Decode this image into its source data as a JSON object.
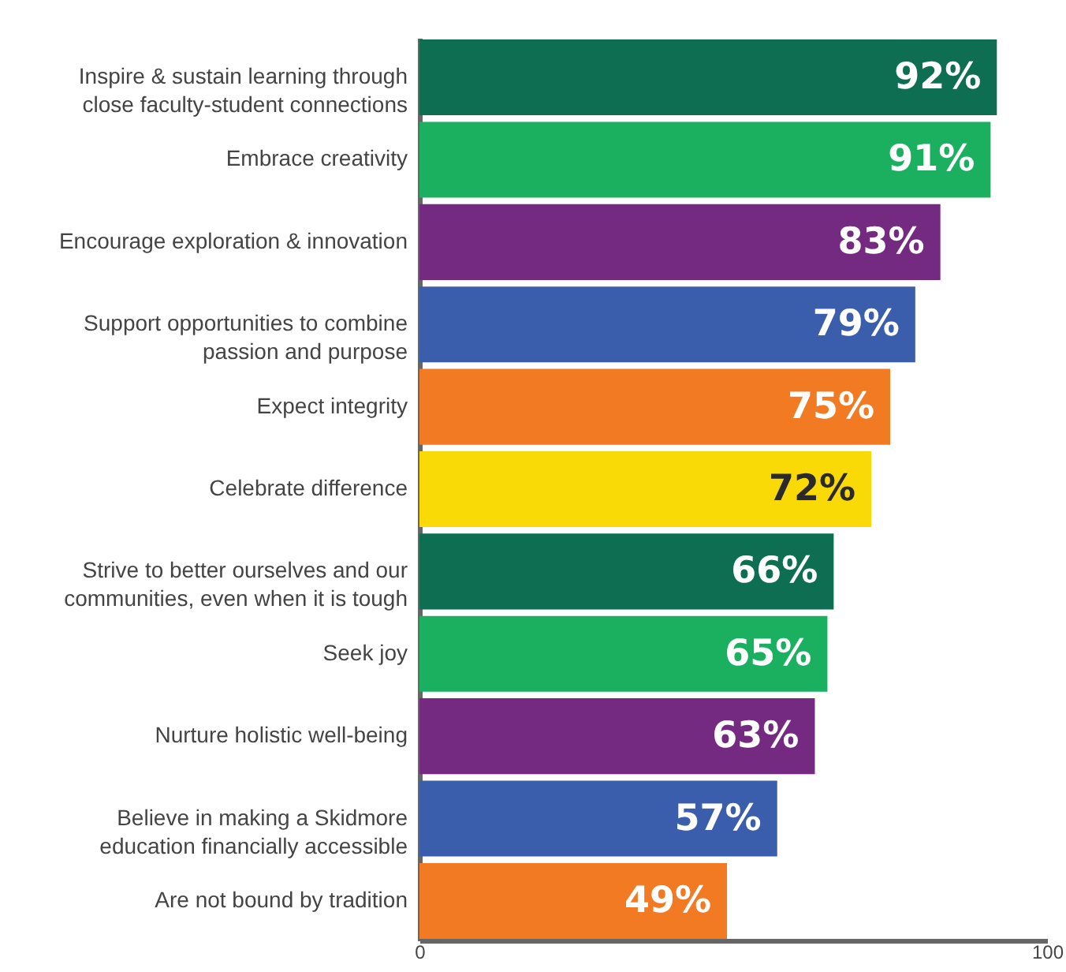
{
  "chart_data": {
    "type": "bar",
    "orientation": "horizontal",
    "categories": [
      "Inspire & sustain learning through\nclose faculty-student connections",
      "Embrace creativity",
      "Encourage exploration & innovation",
      "Support opportunities to combine\npassion and purpose",
      "Expect integrity",
      "Celebrate difference",
      "Strive to better ourselves and our\ncommunities, even when it is tough",
      "Seek joy",
      "Nurture holistic well-being",
      "Believe in making a Skidmore\neducation financially accessible",
      "Are not bound by tradition"
    ],
    "values": [
      92,
      91,
      83,
      79,
      75,
      72,
      66,
      65,
      63,
      57,
      49
    ],
    "colors": [
      "#0e6e52",
      "#1bb060",
      "#742a81",
      "#3a5eab",
      "#f27a22",
      "#f9d906",
      "#0e6e52",
      "#1bb060",
      "#742a81",
      "#3a5eab",
      "#f27a22"
    ],
    "value_labels": [
      "92%",
      "91%",
      "83%",
      "79%",
      "75%",
      "72%",
      "66%",
      "65%",
      "63%",
      "57%",
      "49%"
    ],
    "xlim": [
      0,
      100
    ],
    "xticks": [
      0,
      100
    ],
    "grid": false
  }
}
